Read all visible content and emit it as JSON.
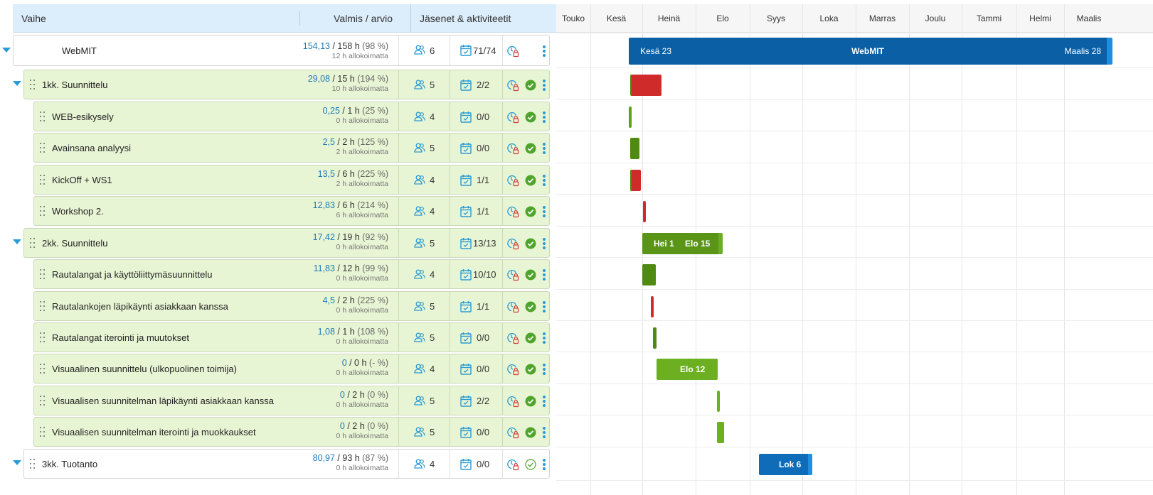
{
  "header": {
    "col_phase": "Vaihe",
    "col_time": "Valmis / arvio",
    "col_members": "Jäsenet & aktiviteetit"
  },
  "rows": [
    {
      "name": "WebMIT",
      "done": "154,13",
      "est": " / 158 h",
      "pct": " (98 %)",
      "unalloc": "12 h allokoimatta",
      "members": "6",
      "acts": "71/74",
      "level": 0,
      "status": "none"
    },
    {
      "name": "1kk. Suunnittelu",
      "done": "29,08",
      "est": " / 15 h",
      "pct": " (194 %)",
      "unalloc": "10 h allokoimatta",
      "members": "5",
      "acts": "2/2",
      "level": 1,
      "status": "check"
    },
    {
      "name": "WEB-esikysely",
      "done": "0,25",
      "est": " / 1 h",
      "pct": " (25 %)",
      "unalloc": "0 h allokoimatta",
      "members": "4",
      "acts": "0/0",
      "level": 2,
      "status": "check"
    },
    {
      "name": "Avainsana analyysi",
      "done": "2,5",
      "est": " / 2 h",
      "pct": " (125 %)",
      "unalloc": "2 h allokoimatta",
      "members": "5",
      "acts": "0/0",
      "level": 2,
      "status": "check"
    },
    {
      "name": "KickOff + WS1",
      "done": "13,5",
      "est": " / 6 h",
      "pct": " (225 %)",
      "unalloc": "2 h allokoimatta",
      "members": "4",
      "acts": "1/1",
      "level": 2,
      "status": "check"
    },
    {
      "name": "Workshop 2.",
      "done": "12,83",
      "est": " / 6 h",
      "pct": " (214 %)",
      "unalloc": "6 h allokoimatta",
      "members": "4",
      "acts": "1/1",
      "level": 2,
      "status": "check"
    },
    {
      "name": "2kk. Suunnittelu",
      "done": "17,42",
      "est": " / 19 h",
      "pct": " (92 %)",
      "unalloc": "0 h allokoimatta",
      "members": "5",
      "acts": "13/13",
      "level": 1,
      "status": "check"
    },
    {
      "name": "Rautalangat ja käyttöliittymäsuunnittelu",
      "done": "11,83",
      "est": " / 12 h",
      "pct": " (99 %)",
      "unalloc": "0 h allokoimatta",
      "members": "4",
      "acts": "10/10",
      "level": 2,
      "status": "check"
    },
    {
      "name": "Rautalankojen läpikäynti asiakkaan kanssa",
      "done": "4,5",
      "est": " / 2 h",
      "pct": " (225 %)",
      "unalloc": "0 h allokoimatta",
      "members": "5",
      "acts": "1/1",
      "level": 2,
      "status": "check"
    },
    {
      "name": "Rautalangat iterointi ja muutokset",
      "done": "1,08",
      "est": " / 1 h",
      "pct": " (108 %)",
      "unalloc": "0 h allokoimatta",
      "members": "5",
      "acts": "0/0",
      "level": 2,
      "status": "check"
    },
    {
      "name": "Visuaalinen suunnittelu (ulkopuolinen toimija)",
      "done": "0",
      "est": " / 0 h",
      "pct": " (- %)",
      "unalloc": "0 h allokoimatta",
      "members": "4",
      "acts": "0/0",
      "level": 2,
      "status": "check"
    },
    {
      "name": "Visuaalisen suunnitelman läpikäynti asiakkaan kanssa",
      "done": "0",
      "est": " / 2 h",
      "pct": " (0 %)",
      "unalloc": "0 h allokoimatta",
      "members": "5",
      "acts": "2/2",
      "level": 2,
      "status": "check"
    },
    {
      "name": "Visuaalisen suunnitelman iterointi ja muokkaukset",
      "done": "0",
      "est": " / 2 h",
      "pct": " (0 %)",
      "unalloc": "0 h allokoimatta",
      "members": "5",
      "acts": "0/0",
      "level": 2,
      "status": "check"
    },
    {
      "name": "3kk. Tuotanto",
      "done": "80,97",
      "est": " / 93 h",
      "pct": " (87 %)",
      "unalloc": "0 h allokoimatta",
      "members": "4",
      "acts": "0/0",
      "level": 1,
      "status": "outline"
    }
  ],
  "gantt": {
    "months": [
      "Touko",
      "Kesä",
      "Heinä",
      "Elo",
      "Syys",
      "Loka",
      "Marras",
      "Joulu",
      "Tammi",
      "Helmi",
      "Maalis"
    ],
    "bars": [
      {
        "row": 0,
        "color": "#0b5fa5",
        "labels": [
          {
            "text": "Kesä 23"
          },
          {
            "text": "WebMIT"
          },
          {
            "text": "Maalis 28"
          }
        ]
      },
      {
        "row": 1,
        "color": "#d02b2b",
        "labels": []
      },
      {
        "row": 2,
        "color": "#5ea21c",
        "labels": []
      },
      {
        "row": 3,
        "color": "#4f8a12",
        "labels": []
      },
      {
        "row": 4,
        "color": "#d02b2b",
        "labels": []
      },
      {
        "row": 5,
        "color": "#d02b2b",
        "labels": []
      },
      {
        "row": 6,
        "color": "#5a9518",
        "labels": [
          {
            "text": "Hei 1"
          },
          {
            "text": "Elo 15"
          }
        ]
      },
      {
        "row": 7,
        "color": "#4f8a12",
        "labels": []
      },
      {
        "row": 8,
        "color": "#d02b2b",
        "labels": []
      },
      {
        "row": 9,
        "color": "#4f8a12",
        "labels": []
      },
      {
        "row": 10,
        "color": "#6cb022",
        "labels": [
          {
            "text": "Elo 12"
          }
        ]
      },
      {
        "row": 11,
        "color": "#6cb022",
        "labels": []
      },
      {
        "row": 12,
        "color": "#6cb022",
        "labels": []
      },
      {
        "row": 13,
        "color": "#0e6cb8",
        "labels": [
          {
            "text": "Lok 6"
          }
        ]
      }
    ]
  },
  "colors": {
    "accent": "#2a9bd5",
    "check_green": "#4fa52b",
    "row_green": "#e8f5d4",
    "header_blue": "#dcedfb"
  }
}
